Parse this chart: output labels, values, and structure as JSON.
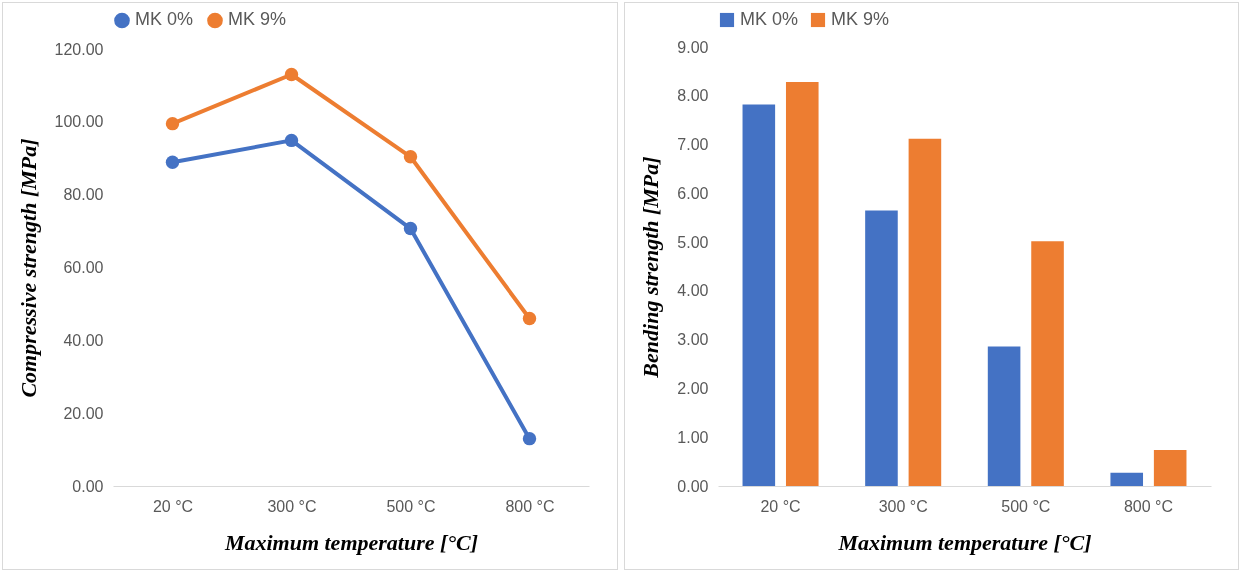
{
  "chart_data": [
    {
      "type": "line",
      "xlabel": "Maximum temperature [°C]",
      "ylabel": "Compressive strength [MPa]",
      "categories": [
        "20 °C",
        "300 °C",
        "500 °C",
        "800 °C"
      ],
      "series": [
        {
          "name": "MK 0%",
          "color": "#4472c4",
          "values": [
            88.9,
            94.9,
            70.7,
            13.0
          ]
        },
        {
          "name": "MK 9%",
          "color": "#ed7d31",
          "values": [
            99.5,
            113.0,
            90.4,
            46.0
          ]
        }
      ],
      "ylim": [
        0,
        120
      ],
      "yticks": [
        {
          "value": 0,
          "label": "0.00"
        },
        {
          "value": 20,
          "label": "20.00"
        },
        {
          "value": 40,
          "label": "40.00"
        },
        {
          "value": 60,
          "label": "60.00"
        },
        {
          "value": 80,
          "label": "80.00"
        },
        {
          "value": 100,
          "label": "100.00"
        },
        {
          "value": 120,
          "label": "120.00"
        }
      ],
      "grid": false,
      "legend": "top",
      "marker": "circle",
      "line_style": "solid"
    },
    {
      "type": "bar",
      "xlabel": "Maximum temperature [°C]",
      "ylabel": "Bending strength [MPa]",
      "categories": [
        "20 °C",
        "300 °C",
        "500 °C",
        "800 °C"
      ],
      "series": [
        {
          "name": "MK 0%",
          "color": "#4472c4",
          "values": [
            7.82,
            5.65,
            2.86,
            0.27
          ]
        },
        {
          "name": "MK 9%",
          "color": "#ed7d31",
          "values": [
            8.28,
            7.12,
            5.02,
            0.74
          ]
        }
      ],
      "ylim": [
        0,
        9
      ],
      "yticks": [
        {
          "value": 0,
          "label": "0.00"
        },
        {
          "value": 1,
          "label": "1.00"
        },
        {
          "value": 2,
          "label": "2.00"
        },
        {
          "value": 3,
          "label": "3.00"
        },
        {
          "value": 4,
          "label": "4.00"
        },
        {
          "value": 5,
          "label": "5.00"
        },
        {
          "value": 6,
          "label": "6.00"
        },
        {
          "value": 7,
          "label": "7.00"
        },
        {
          "value": 8,
          "label": "8.00"
        },
        {
          "value": 9,
          "label": "9.00"
        }
      ],
      "grid": false,
      "legend": "top"
    }
  ]
}
